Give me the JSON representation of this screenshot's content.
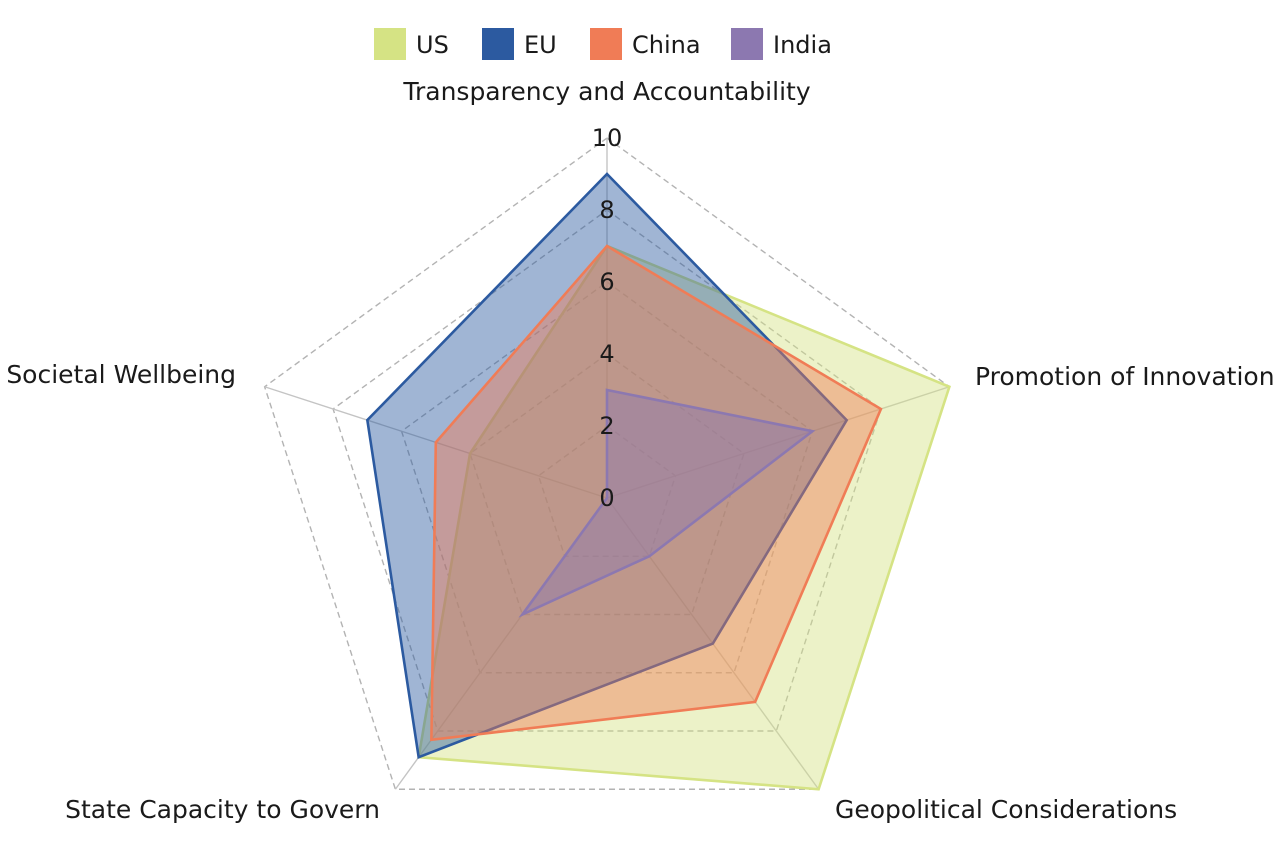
{
  "chart_data": {
    "type": "radar",
    "axes": [
      "Transparency and Accountability",
      "Promotion of Innovation",
      "Geopolitical Considerations",
      "State Capacity to Govern",
      "Societal Wellbeing"
    ],
    "rlim": [
      0,
      10
    ],
    "ticks": [
      "0",
      "2",
      "4",
      "6",
      "8",
      "10"
    ],
    "grid": true,
    "legend_position": "top",
    "series": [
      {
        "name": "US",
        "color": "#d5e384",
        "values": [
          7,
          10,
          10,
          8.9,
          4.0
        ]
      },
      {
        "name": "EU",
        "color": "#2c5aa0",
        "values": [
          9,
          7,
          5,
          8.9,
          7.0
        ]
      },
      {
        "name": "China",
        "color": "#f07c56",
        "values": [
          7,
          8,
          7,
          8.3,
          5.0
        ]
      },
      {
        "name": "India",
        "color": "#8c78b0",
        "values": [
          3,
          6,
          2,
          4.0,
          0
        ]
      }
    ]
  }
}
